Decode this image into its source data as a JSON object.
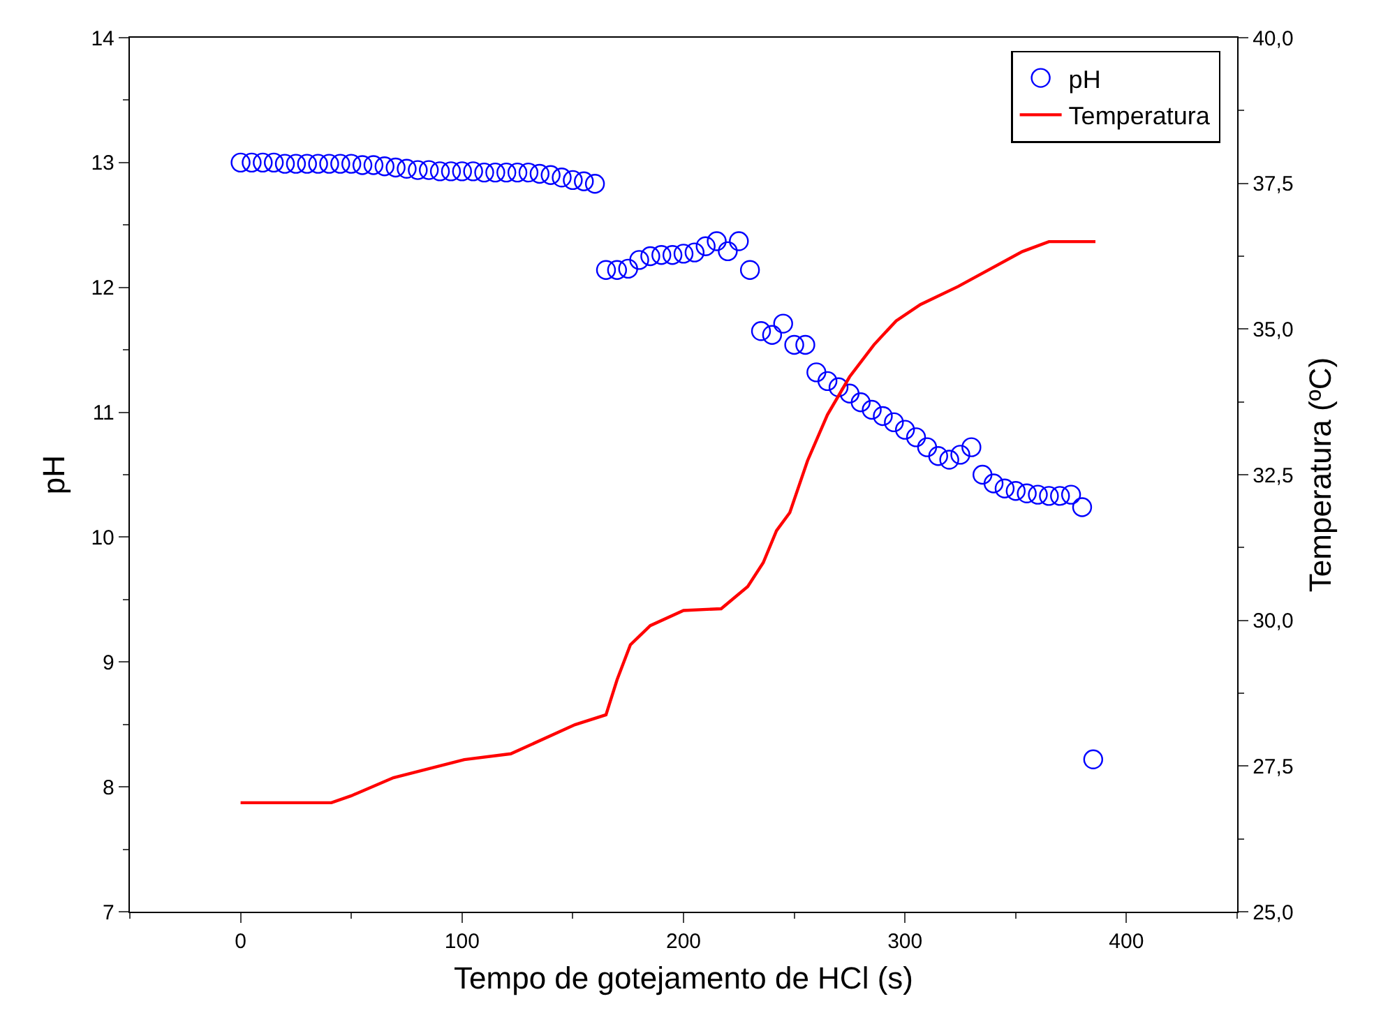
{
  "chart_data": {
    "type": "scatter",
    "xlabel": "Tempo de gotejamento de HCl (s)",
    "ylabel": "pH",
    "y2label": "Temperatura (ºC)",
    "xlim": [
      -50,
      450
    ],
    "xticks": [
      0,
      100,
      200,
      300,
      400
    ],
    "ylim": [
      7,
      14
    ],
    "yticks": [
      7,
      8,
      9,
      10,
      11,
      12,
      13,
      14
    ],
    "y2lim": [
      25,
      40
    ],
    "y2ticks": [
      {
        "value": 25,
        "label": "25,0"
      },
      {
        "value": 27.5,
        "label": "27,5"
      },
      {
        "value": 30,
        "label": "30,0"
      },
      {
        "value": 32.5,
        "label": "32,5"
      },
      {
        "value": 35,
        "label": "35,0"
      },
      {
        "value": 37.5,
        "label": "37,5"
      },
      {
        "value": 40,
        "label": "40,0"
      }
    ],
    "legend": "top right",
    "series": [
      {
        "name": "pH",
        "marker": "circle",
        "color": "#0000ff",
        "x": [
          0,
          5,
          10,
          15,
          20,
          25,
          30,
          35,
          40,
          45,
          50,
          55,
          60,
          65,
          70,
          75,
          80,
          85,
          90,
          95,
          100,
          105,
          110,
          115,
          120,
          125,
          130,
          135,
          140,
          145,
          150,
          155,
          160,
          165,
          170,
          175,
          180,
          185,
          190,
          195,
          200,
          205,
          210,
          215,
          220,
          225,
          230,
          235,
          240,
          245,
          250,
          255,
          260,
          265,
          270,
          275,
          280,
          285,
          290,
          295,
          300,
          305,
          310,
          315,
          320,
          325,
          330,
          335,
          340,
          345,
          350,
          355,
          360,
          365,
          370,
          375,
          380,
          385
        ],
        "values": [
          13.0,
          13.0,
          13.0,
          13.0,
          12.99,
          12.99,
          12.99,
          12.99,
          12.99,
          12.99,
          12.99,
          12.98,
          12.98,
          12.97,
          12.96,
          12.95,
          12.94,
          12.94,
          12.93,
          12.93,
          12.93,
          12.93,
          12.92,
          12.92,
          12.92,
          12.92,
          12.92,
          12.91,
          12.9,
          12.88,
          12.86,
          12.85,
          12.83,
          12.14,
          12.14,
          12.15,
          12.22,
          12.25,
          12.26,
          12.26,
          12.27,
          12.28,
          12.33,
          12.37,
          12.29,
          12.37,
          12.14,
          11.65,
          11.62,
          11.71,
          11.54,
          11.54,
          11.32,
          11.25,
          11.2,
          11.15,
          11.08,
          11.02,
          10.97,
          10.92,
          10.86,
          10.8,
          10.72,
          10.65,
          10.62,
          10.66,
          10.72,
          10.5,
          10.43,
          10.39,
          10.37,
          10.35,
          10.34,
          10.33,
          10.33,
          10.34,
          10.24,
          8.22
        ]
      },
      {
        "name": "Temperatura",
        "type": "line",
        "marker": "none",
        "line_style": "solid",
        "axis": "y2",
        "color": "#ff0000",
        "x": [
          0,
          41,
          50,
          69,
          101,
          122,
          151,
          165,
          170,
          176,
          185,
          200,
          217,
          229,
          236,
          242,
          248,
          256,
          265,
          275,
          286,
          296,
          307,
          324,
          353,
          365,
          386
        ],
        "values": [
          26.87,
          26.87,
          26.99,
          27.3,
          27.61,
          27.71,
          28.21,
          28.38,
          28.98,
          29.58,
          29.91,
          30.17,
          30.2,
          30.58,
          30.99,
          31.54,
          31.85,
          32.74,
          33.53,
          34.18,
          34.73,
          35.14,
          35.42,
          35.73,
          36.33,
          36.5,
          36.5
        ]
      }
    ]
  }
}
